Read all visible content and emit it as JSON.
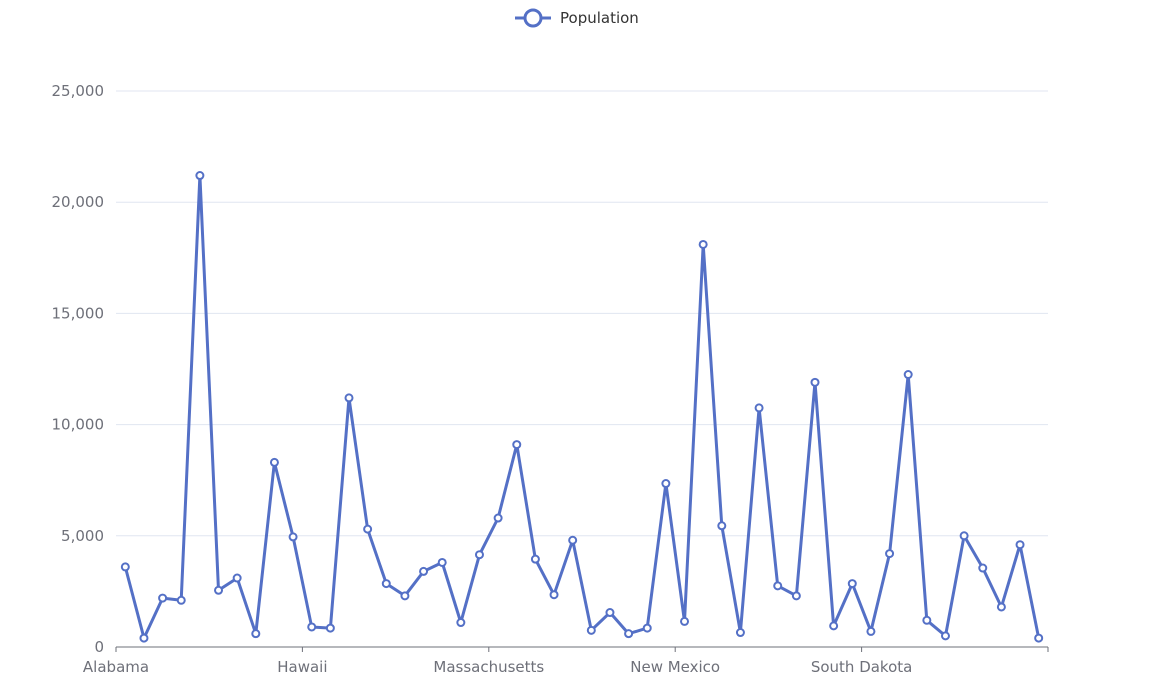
{
  "chart_data": {
    "type": "line",
    "legend": {
      "position": "top-center"
    },
    "grid": true,
    "colors": {
      "series": "#5470c6",
      "grid": "#e0e6f1",
      "axis": "#6e7079",
      "label": "#6e7079"
    },
    "ylim": [
      0,
      25000
    ],
    "y_ticks": [
      "0",
      "5,000",
      "10,000",
      "15,000",
      "20,000",
      "25,000"
    ],
    "y_tick_values": [
      0,
      5000,
      10000,
      15000,
      20000,
      25000
    ],
    "x_tick_labels": [
      {
        "index": 0,
        "label": "Alabama"
      },
      {
        "index": 10,
        "label": "Hawaii"
      },
      {
        "index": 20,
        "label": "Massachusetts"
      },
      {
        "index": 30,
        "label": "New Mexico"
      },
      {
        "index": 40,
        "label": "South Dakota"
      }
    ],
    "series": [
      {
        "name": "Population",
        "values": [
          3600,
          400,
          2200,
          2100,
          21200,
          2550,
          3100,
          600,
          8300,
          4950,
          900,
          850,
          11200,
          5300,
          2850,
          2300,
          3400,
          3800,
          1100,
          4150,
          5800,
          9100,
          3950,
          2350,
          4800,
          750,
          1550,
          600,
          850,
          7350,
          1150,
          18100,
          5450,
          650,
          10750,
          2750,
          2300,
          11900,
          950,
          2850,
          700,
          4200,
          12250,
          1200,
          500,
          5000,
          3550,
          1800,
          4600,
          400
        ]
      }
    ]
  }
}
